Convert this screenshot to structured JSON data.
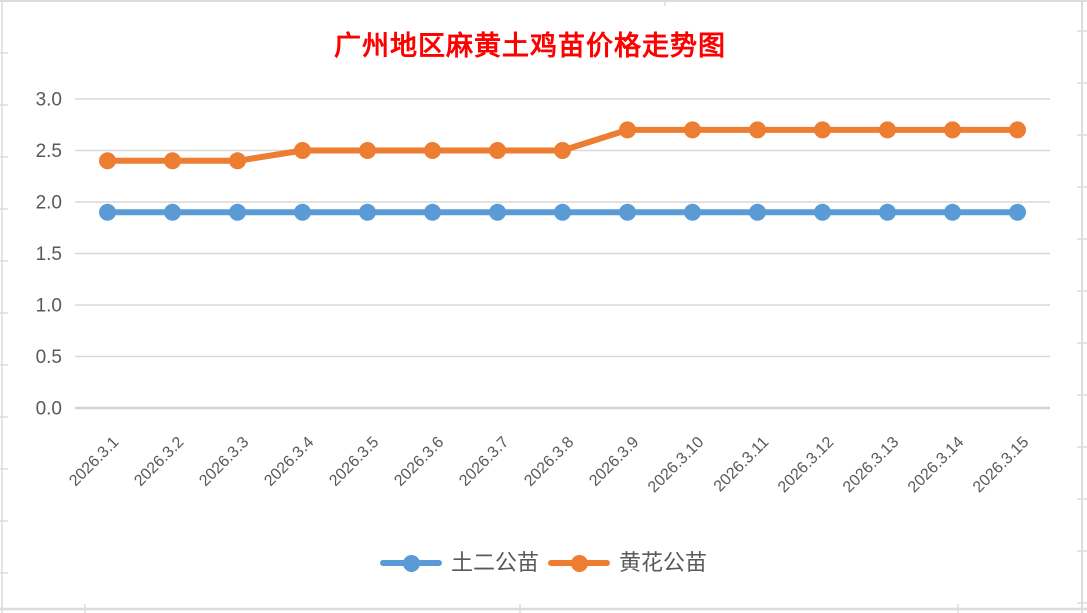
{
  "chart_data": {
    "type": "line",
    "title": "广州地区麻黄土鸡苗价格走势图",
    "categories": [
      "2026.3.1",
      "2026.3.2",
      "2026.3.3",
      "2026.3.4",
      "2026.3.5",
      "2026.3.6",
      "2026.3.7",
      "2026.3.8",
      "2026.3.9",
      "2026.3.10",
      "2026.3.11",
      "2026.3.12",
      "2026.3.13",
      "2026.3.14",
      "2026.3.15"
    ],
    "series": [
      {
        "name": "土二公苗",
        "color": "#5B9BD5",
        "values": [
          1.9,
          1.9,
          1.9,
          1.9,
          1.9,
          1.9,
          1.9,
          1.9,
          1.9,
          1.9,
          1.9,
          1.9,
          1.9,
          1.9,
          1.9
        ]
      },
      {
        "name": "黄花公苗",
        "color": "#ED7D31",
        "values": [
          2.4,
          2.4,
          2.4,
          2.5,
          2.5,
          2.5,
          2.5,
          2.5,
          2.7,
          2.7,
          2.7,
          2.7,
          2.7,
          2.7,
          2.7
        ]
      }
    ],
    "xlabel": "",
    "ylabel": "",
    "ylim": [
      0.0,
      3.0
    ],
    "y_ticks": [
      "0.0",
      "0.5",
      "1.0",
      "1.5",
      "2.0",
      "2.5",
      "3.0"
    ],
    "grid": "horizontal",
    "legend_position": "bottom"
  },
  "styles": {
    "title_color": "#FF0000",
    "axis_label_color": "#595959",
    "gridline_color": "#D9D9D9",
    "baseline_color": "#D3D3D3",
    "sheet_line_color": "#DCDCDC",
    "background": "#FFFFFF"
  }
}
